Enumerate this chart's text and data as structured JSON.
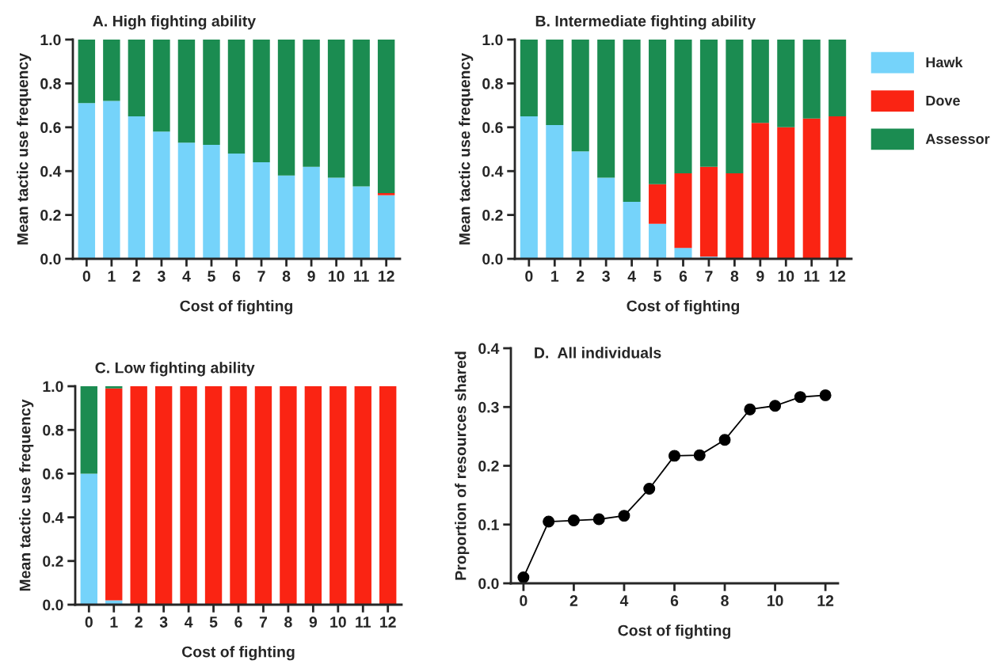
{
  "chart_data": [
    {
      "type": "bar",
      "stacked": true,
      "title": "A. High fighting ability",
      "xlabel": "Cost of fighting",
      "ylabel": "Mean tactic use frequency",
      "categories": [
        "0",
        "1",
        "2",
        "3",
        "4",
        "5",
        "6",
        "7",
        "8",
        "9",
        "10",
        "11",
        "12"
      ],
      "ylim": [
        0,
        1.0
      ],
      "yticks": [
        {
          "value": 0,
          "label": "0.0"
        },
        {
          "value": 0.2,
          "label": "0.2"
        },
        {
          "value": 0.4,
          "label": "0.4"
        },
        {
          "value": 0.6,
          "label": "0.6"
        },
        {
          "value": 0.8,
          "label": "0.8"
        },
        {
          "value": 1.0,
          "label": "1.0"
        }
      ],
      "grid": false,
      "series": [
        {
          "color": "#75d3fa",
          "values": [
            0.71,
            0.72,
            0.65,
            0.58,
            0.53,
            0.52,
            0.48,
            0.44,
            0.38,
            0.42,
            0.37,
            0.33,
            0.29
          ]
        },
        {
          "color": "#fa2413",
          "values": [
            0,
            0,
            0,
            0,
            0,
            0,
            0,
            0,
            0,
            0,
            0,
            0,
            0.01
          ]
        },
        {
          "color": "#1b8c51",
          "values": [
            0.29,
            0.28,
            0.35,
            0.42,
            0.47,
            0.48,
            0.52,
            0.56,
            0.62,
            0.58,
            0.63,
            0.67,
            0.7
          ]
        }
      ]
    },
    {
      "type": "bar",
      "stacked": true,
      "title": "B. Intermediate fighting ability",
      "xlabel": "Cost of fighting",
      "ylabel": "Mean tactic use frequency",
      "categories": [
        "0",
        "1",
        "2",
        "3",
        "4",
        "5",
        "6",
        "7",
        "8",
        "9",
        "10",
        "11",
        "12"
      ],
      "ylim": [
        0,
        1.0
      ],
      "yticks": [
        {
          "value": 0,
          "label": "0.0"
        },
        {
          "value": 0.2,
          "label": "0.2"
        },
        {
          "value": 0.4,
          "label": "0.4"
        },
        {
          "value": 0.6,
          "label": "0.6"
        },
        {
          "value": 0.8,
          "label": "0.8"
        },
        {
          "value": 1.0,
          "label": "1.0"
        }
      ],
      "grid": false,
      "legend": "right",
      "series": [
        {
          "name": "Hawk",
          "color": "#75d3fa",
          "values": [
            0.65,
            0.61,
            0.49,
            0.37,
            0.26,
            0.16,
            0.05,
            0.01,
            0,
            0,
            0,
            0,
            0
          ]
        },
        {
          "name": "Dove",
          "color": "#fa2413",
          "values": [
            0,
            0,
            0,
            0,
            0,
            0.18,
            0.34,
            0.41,
            0.39,
            0.62,
            0.6,
            0.64,
            0.65
          ]
        },
        {
          "name": "Assessor",
          "color": "#1b8c51",
          "values": [
            0.35,
            0.39,
            0.51,
            0.63,
            0.74,
            0.66,
            0.61,
            0.58,
            0.61,
            0.38,
            0.4,
            0.36,
            0.35
          ]
        }
      ]
    },
    {
      "type": "bar",
      "stacked": true,
      "title": "C. Low fighting ability",
      "xlabel": "Cost of fighting",
      "ylabel": "Mean tactic use frequency",
      "categories": [
        "0",
        "1",
        "2",
        "3",
        "4",
        "5",
        "6",
        "7",
        "8",
        "9",
        "10",
        "11",
        "12"
      ],
      "ylim": [
        0,
        1.0
      ],
      "yticks": [
        {
          "value": 0,
          "label": "0.0"
        },
        {
          "value": 0.2,
          "label": "0.2"
        },
        {
          "value": 0.4,
          "label": "0.4"
        },
        {
          "value": 0.6,
          "label": "0.6"
        },
        {
          "value": 0.8,
          "label": "0.8"
        },
        {
          "value": 1.0,
          "label": "1.0"
        }
      ],
      "grid": false,
      "series": [
        {
          "color": "#75d3fa",
          "values": [
            0.6,
            0.02,
            0,
            0,
            0,
            0,
            0,
            0,
            0,
            0,
            0,
            0,
            0
          ]
        },
        {
          "color": "#fa2413",
          "values": [
            0,
            0.97,
            1,
            1,
            1,
            1,
            1,
            1,
            1,
            1,
            1,
            1,
            1
          ]
        },
        {
          "color": "#1b8c51",
          "values": [
            0.4,
            0.01,
            0,
            0,
            0,
            0,
            0,
            0,
            0,
            0,
            0,
            0,
            0
          ]
        }
      ]
    },
    {
      "type": "line",
      "title": "D.  All individuals",
      "xlabel": "Cost of fighting",
      "ylabel": "Proportion of resources shared",
      "x": [
        0,
        1,
        2,
        3,
        4,
        5,
        6,
        7,
        8,
        9,
        10,
        11,
        12
      ],
      "xlim": [
        -0.5,
        12.5
      ],
      "xticks": [
        0,
        2,
        4,
        6,
        8,
        10,
        12
      ],
      "ylim": [
        0,
        0.4
      ],
      "yticks": [
        {
          "value": 0,
          "label": "0.0"
        },
        {
          "value": 0.1,
          "label": "0.1"
        },
        {
          "value": 0.2,
          "label": "0.2"
        },
        {
          "value": 0.3,
          "label": "0.3"
        },
        {
          "value": 0.4,
          "label": "0.4"
        }
      ],
      "grid": false,
      "marker": "circle",
      "line_style": "solid",
      "series": [
        {
          "color": "#000000",
          "values": [
            0.01,
            0.105,
            0.107,
            0.109,
            0.115,
            0.161,
            0.217,
            0.218,
            0.244,
            0.296,
            0.302,
            0.317,
            0.32
          ]
        }
      ]
    }
  ]
}
